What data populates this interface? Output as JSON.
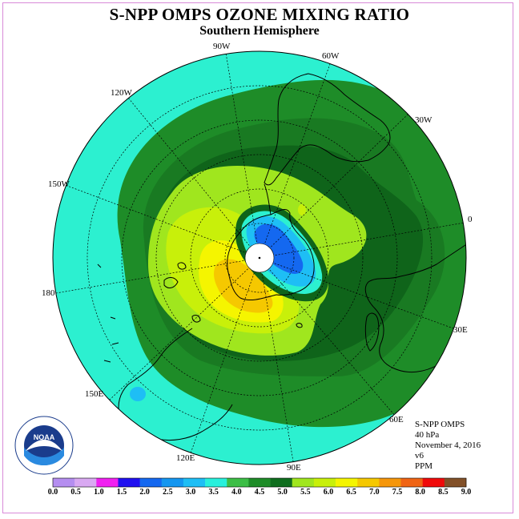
{
  "title": "S-NPP OMPS OZONE MIXING RATIO",
  "subtitle": "Southern Hemisphere",
  "longitude_labels": [
    {
      "key": "90w",
      "text": "90W"
    },
    {
      "key": "60w",
      "text": "60W"
    },
    {
      "key": "120w",
      "text": "120W"
    },
    {
      "key": "30w",
      "text": "30W"
    },
    {
      "key": "150w",
      "text": "150W"
    },
    {
      "key": "0",
      "text": "0"
    },
    {
      "key": "180",
      "text": "180"
    },
    {
      "key": "30e",
      "text": "30E"
    },
    {
      "key": "150e",
      "text": "150E"
    },
    {
      "key": "60e",
      "text": "60E"
    },
    {
      "key": "120e",
      "text": "120E"
    },
    {
      "key": "90e",
      "text": "90E"
    }
  ],
  "info": {
    "instrument": "S-NPP OMPS",
    "pressure": "40 hPa",
    "date": "November 4, 2016",
    "version": "v6",
    "units": "PPM"
  },
  "logo_text": "NOAA",
  "colorbar": {
    "labels": [
      "0.0",
      "0.5",
      "1.0",
      "1.5",
      "2.0",
      "2.5",
      "3.0",
      "3.5",
      "4.0",
      "4.5",
      "5.0",
      "5.5",
      "6.0",
      "6.5",
      "7.0",
      "7.5",
      "8.0",
      "8.5",
      "9.0"
    ],
    "colors": [
      "#b58ef0",
      "#d9a9f2",
      "#f020f0",
      "#2010f0",
      "#1468f0",
      "#1496f0",
      "#1ebef5",
      "#28f0dc",
      "#3cbe46",
      "#1e8c28",
      "#0f6e1e",
      "#a0e61e",
      "#c8f00a",
      "#f5f500",
      "#f5c800",
      "#f5960a",
      "#f06414",
      "#f00a0a",
      "#825028"
    ]
  },
  "colors": {
    "background_ocean": "#2cf0d0",
    "level_4_0": "#1e8c28",
    "level_4_5": "#197a22",
    "level_5_0": "#0f641a",
    "level_5_5": "#a0e61e",
    "level_6_0": "#c8f00a",
    "level_6_5": "#f5f500",
    "level_7_0": "#f5c800",
    "low_3_5": "#1ebef5",
    "low_2_5": "#1468f0"
  }
}
